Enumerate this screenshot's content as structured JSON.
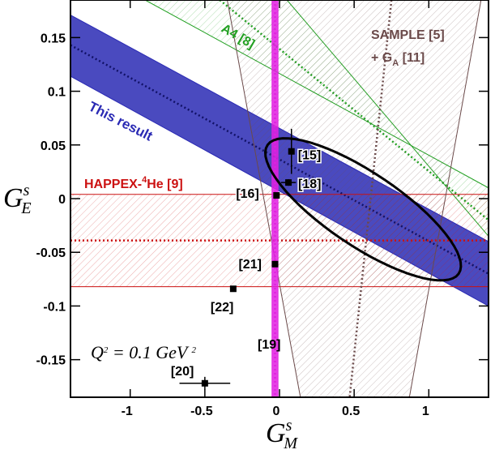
{
  "chart_data": {
    "type": "band-plot",
    "xlim": [
      -1.4,
      1.4
    ],
    "ylim": [
      -0.185,
      0.185
    ],
    "xticks": [
      -1,
      -0.5,
      0,
      0.5,
      1
    ],
    "yticks": [
      0.15,
      0.1,
      0.05,
      0,
      -0.05,
      -0.1,
      -0.15
    ],
    "x_label": {
      "base": "G",
      "sub": "M",
      "sup": "s"
    },
    "y_label": {
      "base": "G",
      "sub": "E",
      "sup": "s"
    },
    "bands": [
      {
        "color": "#2a2ab4",
        "style": "solid",
        "edges": [
          [
            [
              -1.4,
              0.171
            ],
            [
              1.4,
              -0.04
            ]
          ],
          [
            [
              -1.4,
              0.114
            ],
            [
              1.4,
              -0.1
            ]
          ]
        ],
        "center": [
          [
            -1.4,
            0.143
          ],
          [
            1.4,
            -0.07
          ]
        ]
      },
      {
        "color": "#22a022",
        "style": "hatch",
        "edges": [
          [
            [
              -0.9,
              0.185
            ],
            [
              1.4,
              0.01
            ]
          ],
          [
            [
              0.05,
              0.185
            ],
            [
              1.4,
              -0.035
            ]
          ]
        ],
        "center": [
          [
            -0.4,
            0.185
          ],
          [
            1.4,
            -0.02
          ]
        ]
      },
      {
        "color": "#cc1111",
        "style": "hatch",
        "edges": [
          [
            [
              -1.4,
              0.004
            ],
            [
              1.4,
              0.004
            ]
          ],
          [
            [
              -1.4,
              -0.082
            ],
            [
              1.4,
              -0.082
            ]
          ]
        ],
        "center": [
          [
            -1.4,
            -0.039
          ],
          [
            1.4,
            -0.039
          ]
        ]
      },
      {
        "color": "#6b4a4a",
        "style": "hatch",
        "edges": [
          [
            [
              -0.35,
              0.185
            ],
            [
              0.14,
              -0.185
            ]
          ],
          [
            [
              1.35,
              0.185
            ],
            [
              0.87,
              -0.185
            ]
          ]
        ],
        "center": [
          [
            0.75,
            0.185
          ],
          [
            0.47,
            -0.185
          ]
        ]
      },
      {
        "color": "#e020e0",
        "style": "solid",
        "edges": [
          [
            [
              -0.05,
              0.185
            ],
            [
              -0.05,
              -0.185
            ]
          ],
          [
            [
              -0.01,
              0.185
            ],
            [
              -0.01,
              -0.185
            ]
          ]
        ],
        "center": [
          [
            -0.03,
            0.185
          ],
          [
            -0.03,
            -0.185
          ]
        ]
      }
    ],
    "ellipse": {
      "center": [
        0.56,
        -0.01
      ],
      "major": [
        0.64,
        -0.06
      ],
      "minor": [
        0.14,
        0.028
      ]
    },
    "points": [
      {
        "name": "[15]",
        "x": 0.08,
        "y": 0.044,
        "xerr": 0,
        "yerr": 0.021
      },
      {
        "name": "[18]",
        "x": 0.06,
        "y": 0.015,
        "xerr": 0.05,
        "yerr": 0.003
      },
      {
        "name": "[16]",
        "x": -0.02,
        "y": 0.003,
        "xerr": 0,
        "yerr": 0
      },
      {
        "name": "[21]",
        "x": -0.03,
        "y": -0.061,
        "xerr": 0,
        "yerr": 0
      },
      {
        "name": "[22]",
        "x": -0.31,
        "y": -0.084,
        "xerr": 0,
        "yerr": 0
      },
      {
        "name": "[20]",
        "x": -0.5,
        "y": -0.172,
        "xerr": 0.17,
        "yerr": 0.006
      }
    ],
    "labels": {
      "a4": "A4  [8]",
      "sample": [
        "SAMPLE  [5]",
        "+ G",
        "A",
        " [11]"
      ],
      "this_result": "This result",
      "happex": [
        "HAPPEX-",
        "4",
        "He [9]"
      ],
      "ref19": "[19]",
      "q2": [
        "Q",
        "2",
        " = 0.1 GeV ",
        "2"
      ]
    }
  }
}
